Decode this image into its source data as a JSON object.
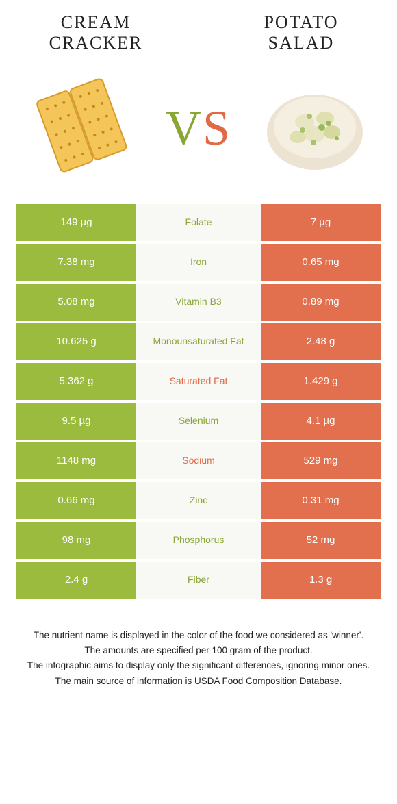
{
  "colors": {
    "green": "#9bbb3f",
    "orange": "#e2704e",
    "mid_bg": "#f8f8f5",
    "vs_green": "#8aa636",
    "vs_orange": "#e06a45"
  },
  "foods": {
    "left": {
      "title": "CREAM CRACKER"
    },
    "right": {
      "title": "POTATO SALAD"
    }
  },
  "vs": {
    "v": "V",
    "s": "S"
  },
  "rows": [
    {
      "left": "149 µg",
      "label": "Folate",
      "right": "7 µg",
      "winner": "left"
    },
    {
      "left": "7.38 mg",
      "label": "Iron",
      "right": "0.65 mg",
      "winner": "left"
    },
    {
      "left": "5.08 mg",
      "label": "Vitamin B3",
      "right": "0.89 mg",
      "winner": "left"
    },
    {
      "left": "10.625 g",
      "label": "Monounsaturated Fat",
      "right": "2.48 g",
      "winner": "left"
    },
    {
      "left": "5.362 g",
      "label": "Saturated Fat",
      "right": "1.429 g",
      "winner": "right"
    },
    {
      "left": "9.5 µg",
      "label": "Selenium",
      "right": "4.1 µg",
      "winner": "left"
    },
    {
      "left": "1148 mg",
      "label": "Sodium",
      "right": "529 mg",
      "winner": "right"
    },
    {
      "left": "0.66 mg",
      "label": "Zinc",
      "right": "0.31 mg",
      "winner": "left"
    },
    {
      "left": "98 mg",
      "label": "Phosphorus",
      "right": "52 mg",
      "winner": "left"
    },
    {
      "left": "2.4 g",
      "label": "Fiber",
      "right": "1.3 g",
      "winner": "left"
    }
  ],
  "footnotes": [
    "The nutrient name is displayed in the color of the food we considered as 'winner'.",
    "The amounts are specified per 100 gram of the product.",
    "The infographic aims to display only the significant differences, ignoring minor ones.",
    "The main source of information is USDA Food Composition Database."
  ]
}
